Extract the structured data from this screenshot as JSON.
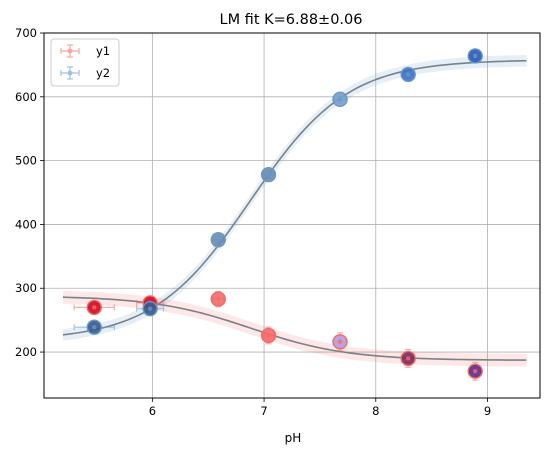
{
  "chart_data": {
    "type": "scatter",
    "title": "LM fit K=6.88±0.06",
    "xlabel": "pH",
    "ylabel": "",
    "xlim": [
      5.03,
      9.47
    ],
    "ylim": [
      128,
      700
    ],
    "xticks": [
      6,
      7,
      8,
      9
    ],
    "yticks": [
      200,
      300,
      400,
      500,
      600,
      700
    ],
    "grid": true,
    "legend_position": "top-left",
    "series": [
      {
        "name": "y1",
        "color": "#f26b6b",
        "x": [
          5.48,
          5.98,
          6.59,
          7.04,
          7.68,
          8.29,
          8.89
        ],
        "y": [
          270,
          277,
          283,
          226,
          216,
          190,
          170
        ],
        "xerr": [
          0.18,
          0.12,
          0.05,
          0.05,
          0.05,
          0.05,
          0.05
        ],
        "yerr": [
          10,
          10,
          12,
          13,
          14,
          14,
          14
        ],
        "marker_colors": [
          "#cc0a21",
          "#cc0a21",
          "#f26b6b",
          "#f26b6b",
          "#b79ad8",
          "#7a2a5a",
          "#5b2a8a"
        ],
        "fit": {
          "bottom": 187,
          "top": 288,
          "K": 6.88,
          "band": 10
        }
      },
      {
        "name": "y2",
        "color": "#6699cc",
        "x": [
          5.48,
          5.98,
          6.59,
          7.04,
          7.68,
          8.29,
          8.89
        ],
        "y": [
          239,
          268,
          376,
          478,
          596,
          635,
          664
        ],
        "xerr": [
          0.18,
          0.12,
          0.05,
          0.05,
          0.05,
          0.05,
          0.05
        ],
        "yerr": [
          4,
          4,
          5,
          5,
          5,
          6,
          6
        ],
        "marker_colors": [
          "#3a5a8a",
          "#3a5a8a",
          "#6b8caf",
          "#6b8caf",
          "#7aa0c8",
          "#3e72c2",
          "#2b58b8"
        ],
        "fit": {
          "bottom": 658,
          "top": 218,
          "K": 6.88,
          "band": 9
        }
      }
    ]
  }
}
